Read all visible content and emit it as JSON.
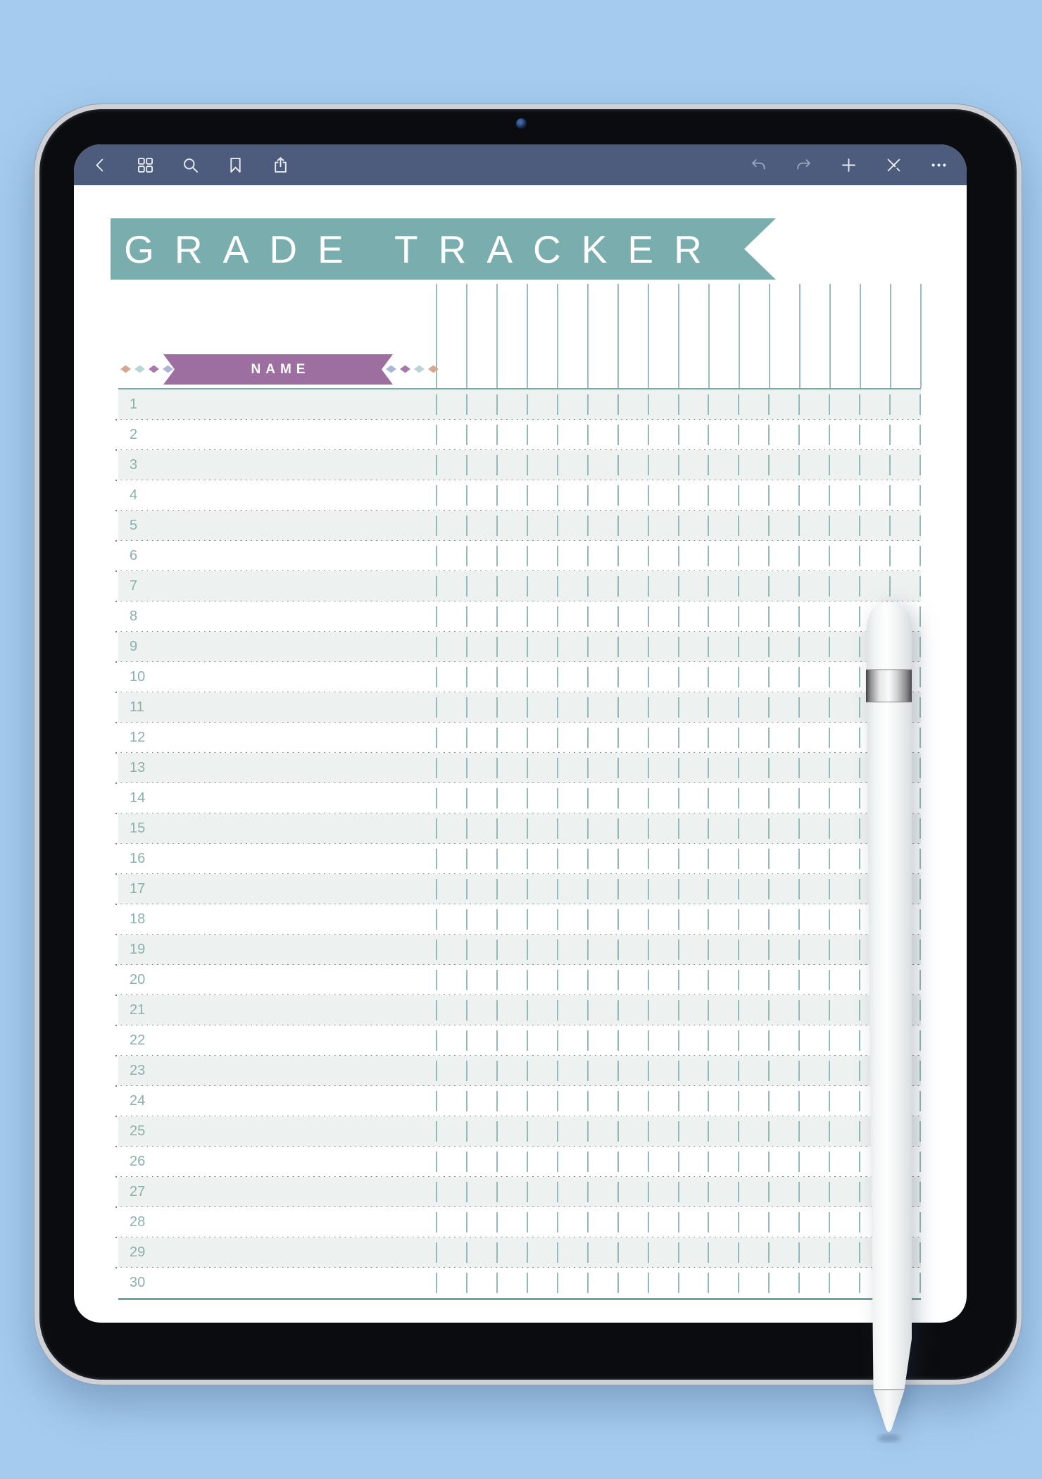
{
  "navbar": {
    "left_icons": [
      {
        "name": "back-icon"
      },
      {
        "name": "grid-icon"
      },
      {
        "name": "search-icon"
      },
      {
        "name": "bookmark-icon"
      },
      {
        "name": "share-icon"
      }
    ],
    "right_icons": [
      {
        "name": "undo-icon"
      },
      {
        "name": "redo-icon"
      },
      {
        "name": "add-icon"
      },
      {
        "name": "pen-cross-icon"
      },
      {
        "name": "more-icon"
      }
    ]
  },
  "page": {
    "title": "GRADE TRACKER",
    "name_banner": {
      "label": "NAME",
      "diamond_colors_left": [
        "#d4a98d",
        "#b7d6d6",
        "#a979ab",
        "#aab7da"
      ],
      "diamond_colors_right": [
        "#aab7da",
        "#a979ab",
        "#b7d6d6",
        "#d4a98d"
      ]
    },
    "table": {
      "rows": [
        "1",
        "2",
        "3",
        "4",
        "5",
        "6",
        "7",
        "8",
        "9",
        "10",
        "11",
        "12",
        "13",
        "14",
        "15",
        "16",
        "17",
        "18",
        "19",
        "20",
        "21",
        "22",
        "23",
        "24",
        "25",
        "26",
        "27",
        "28",
        "29",
        "30"
      ],
      "grade_column_lines": 17
    }
  },
  "colors": {
    "background_blue": "#a5cbee",
    "navbar": "#4d5b7c",
    "banner_teal": "#7aadad",
    "table_line_teal": "#79aaaa",
    "banner_purple": "#9d6fa0",
    "row_shade": "#edf1ef",
    "row_number": "#8cb0ae",
    "grid_dash": "#93b9b9"
  }
}
